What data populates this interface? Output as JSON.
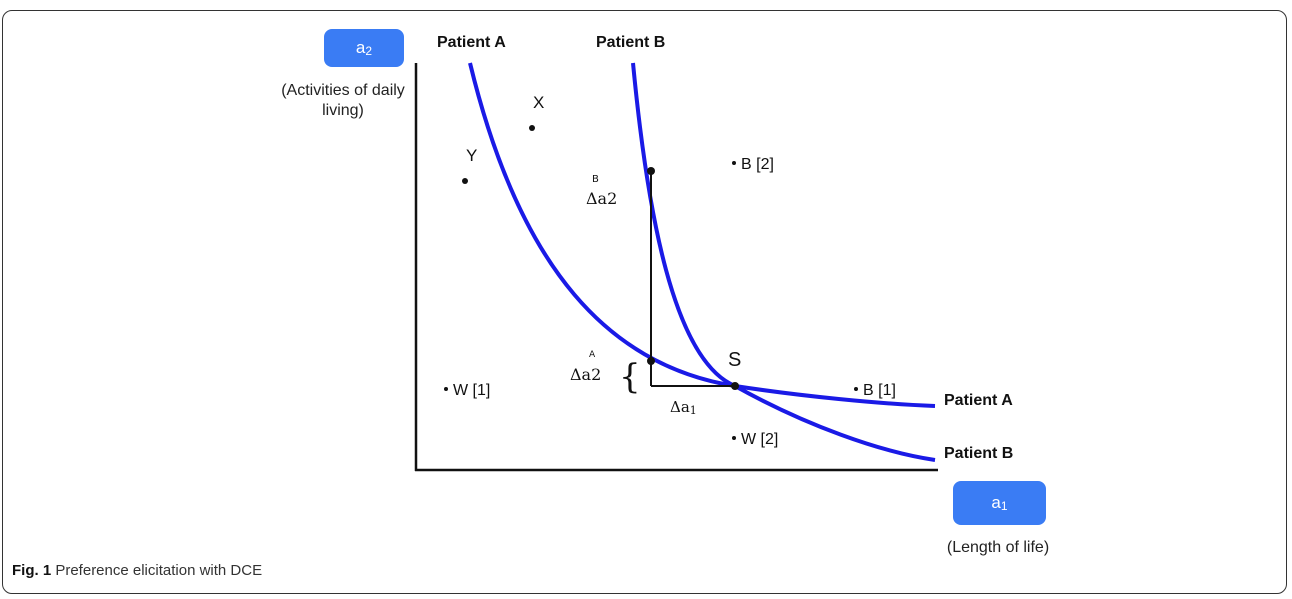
{
  "diagram": {
    "y_badge": {
      "letter": "a",
      "sub": "2"
    },
    "y_desc_line1": "(Activities of daily",
    "y_desc_line2": "living)",
    "x_badge": {
      "letter": "a",
      "sub": "1"
    },
    "x_desc": "(Length of life)",
    "curve_top_label_a": "Patient A",
    "curve_top_label_b": "Patient B",
    "curve_right_label_a": "Patient A",
    "curve_right_label_b": "Patient B",
    "points": {
      "x": "X",
      "y": "Y",
      "s": "S",
      "b2": "B [2]",
      "b1": "B [1]",
      "w1": "W [1]",
      "w2": "W [2]"
    },
    "delta_b": {
      "sup": "B",
      "text": "Δa2"
    },
    "delta_a": {
      "sup": "A",
      "text": "Δa2"
    },
    "delta_a1": {
      "text": "Δa",
      "sub": "1"
    },
    "brace": "{",
    "colors": {
      "curve": "#1a1ae6",
      "badge": "#3a7cf4"
    }
  },
  "caption": {
    "label": "Fig. 1",
    "text": " Preference elicitation with DCE"
  }
}
